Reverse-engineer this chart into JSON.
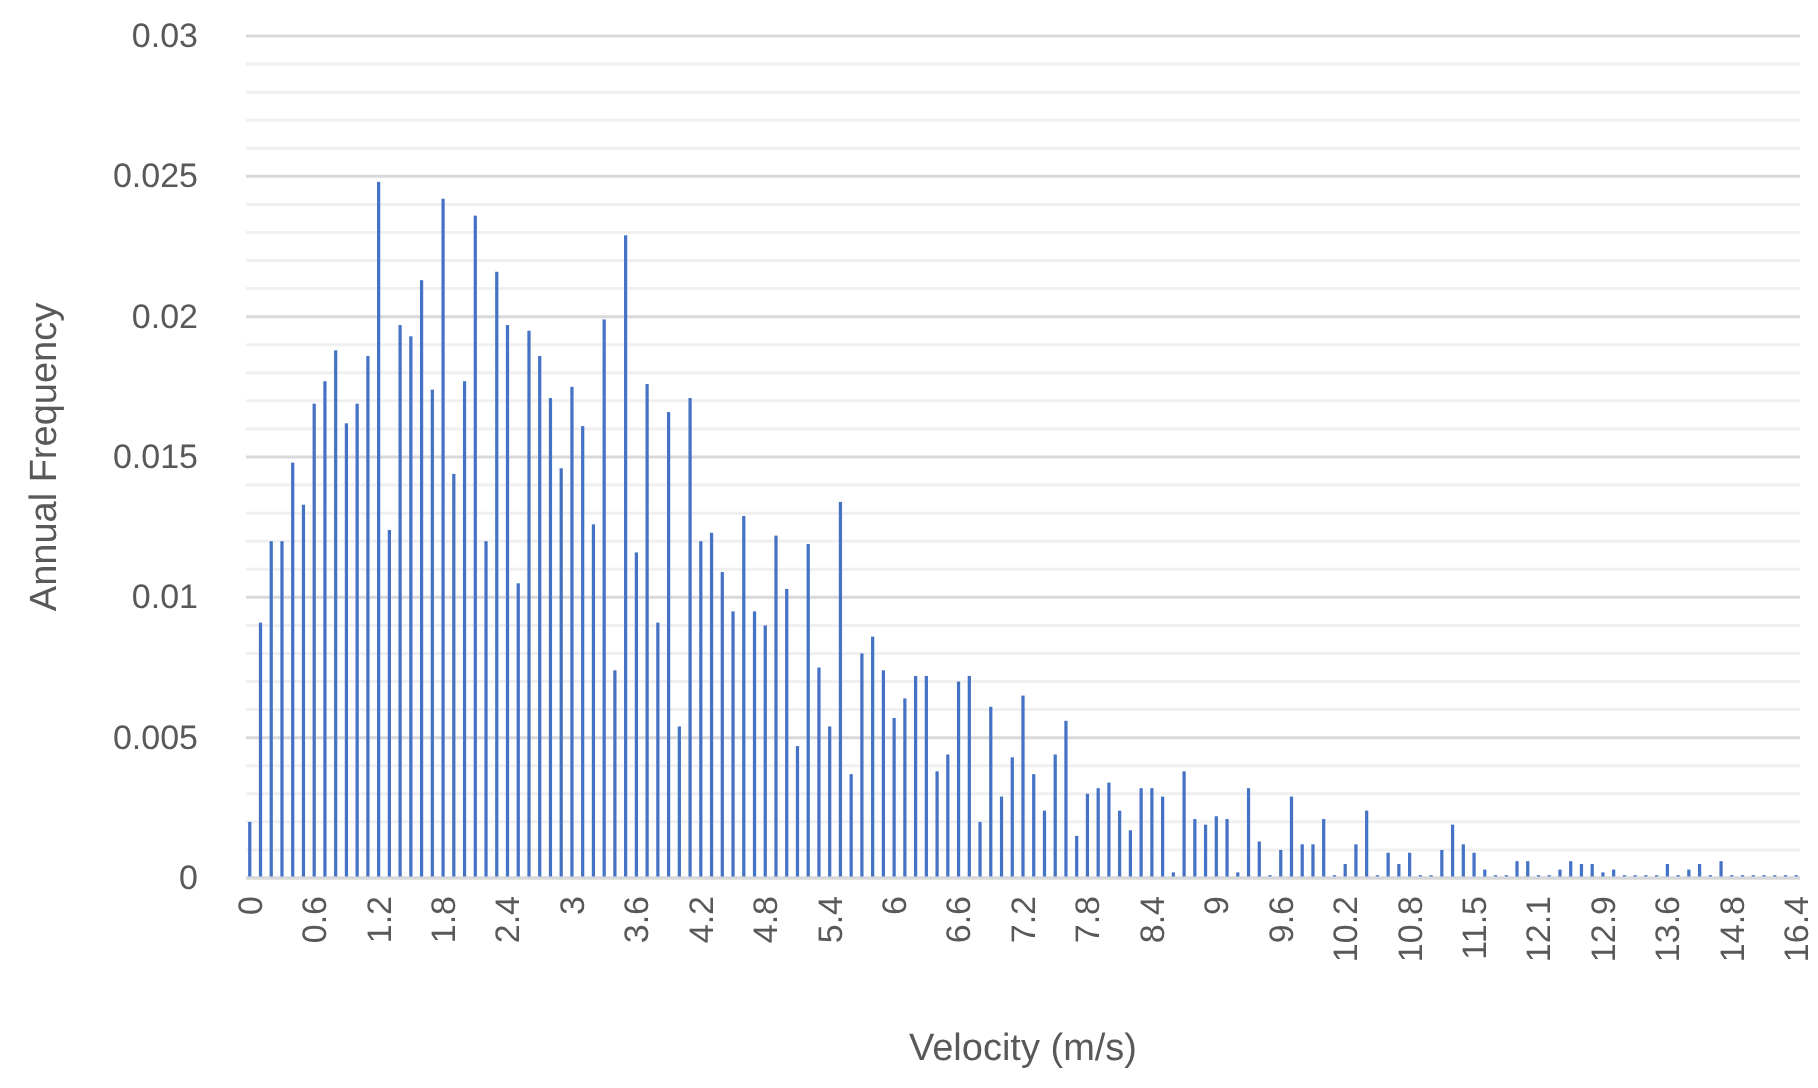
{
  "chart_data": {
    "type": "bar",
    "xlabel": "Velocity (m/s)",
    "ylabel": "Annual Frequency",
    "categories": [
      "0",
      null,
      null,
      null,
      null,
      null,
      "0.6",
      null,
      null,
      null,
      null,
      null,
      "1.2",
      null,
      null,
      null,
      null,
      null,
      "1.8",
      null,
      null,
      null,
      null,
      null,
      "2.4",
      null,
      null,
      null,
      null,
      null,
      "3",
      null,
      null,
      null,
      null,
      null,
      "3.6",
      null,
      null,
      null,
      null,
      null,
      "4.2",
      null,
      null,
      null,
      null,
      null,
      "4.8",
      null,
      null,
      null,
      null,
      null,
      "5.4",
      null,
      null,
      null,
      null,
      null,
      "6",
      null,
      null,
      null,
      null,
      null,
      "6.6",
      null,
      null,
      null,
      null,
      null,
      "7.2",
      null,
      null,
      null,
      null,
      null,
      "7.8",
      null,
      null,
      null,
      null,
      null,
      "8.4",
      null,
      null,
      null,
      null,
      null,
      "9",
      null,
      null,
      null,
      null,
      null,
      "9.6",
      null,
      null,
      null,
      null,
      null,
      "10.2",
      null,
      null,
      null,
      null,
      null,
      "10.8",
      null,
      null,
      null,
      null,
      null,
      "11.5",
      null,
      null,
      null,
      null,
      null,
      "12.1",
      null,
      null,
      null,
      null,
      null,
      "12.9",
      null,
      null,
      null,
      null,
      null,
      "13.6",
      null,
      null,
      null,
      null,
      null,
      "14.8",
      null,
      null,
      null,
      null,
      null,
      "16.4"
    ],
    "series": [
      {
        "color": "#4472c4",
        "values": [
          0.002,
          0.0091,
          0.012,
          0.012,
          0.0148,
          0.0133,
          0.0169,
          0.0177,
          0.0188,
          0.0162,
          0.0169,
          0.0186,
          0.0248,
          0.0124,
          0.0197,
          0.0193,
          0.0213,
          0.0174,
          0.0242,
          0.0144,
          0.0177,
          0.0236,
          0.012,
          0.0216,
          0.0197,
          0.0105,
          0.0195,
          0.0186,
          0.0171,
          0.0146,
          0.0175,
          0.0161,
          0.0126,
          0.0199,
          0.0074,
          0.0229,
          0.0116,
          0.0176,
          0.0091,
          0.0166,
          0.0054,
          0.0171,
          0.012,
          0.0123,
          0.0109,
          0.0095,
          0.0129,
          0.0095,
          0.009,
          0.0122,
          0.0103,
          0.0047,
          0.0119,
          0.0075,
          0.0054,
          0.0134,
          0.0037,
          0.008,
          0.0086,
          0.0074,
          0.0057,
          0.0064,
          0.0072,
          0.0072,
          0.0038,
          0.0044,
          0.007,
          0.0072,
          0.002,
          0.0061,
          0.0029,
          0.0043,
          0.0065,
          0.0037,
          0.0024,
          0.0044,
          0.0056,
          0.0015,
          0.003,
          0.0032,
          0.0034,
          0.0024,
          0.0017,
          0.0032,
          0.0032,
          0.0029,
          0.0002,
          0.0038,
          0.0021,
          0.0019,
          0.0022,
          0.0021,
          0.0002,
          0.0032,
          0.0013,
          0.0001,
          0.001,
          0.0029,
          0.0012,
          0.0012,
          0.0021,
          0.0001,
          0.0005,
          0.0012,
          0.0024,
          0.0001,
          0.0009,
          0.0005,
          0.0009,
          0.0001,
          0.0001,
          0.001,
          0.0019,
          0.0012,
          0.0009,
          0.0003,
          0.0001,
          0.0001,
          0.0006,
          0.0006,
          0.0001,
          0.0001,
          0.0003,
          0.0006,
          0.0005,
          0.0005,
          0.0002,
          0.0003,
          0.0001,
          0.0001,
          0.0001,
          0.0001,
          0.0005,
          0.0001,
          0.0003,
          0.0005,
          0.0001,
          0.0006,
          0.0001,
          0.0001,
          0.0001,
          0.0001,
          0.0001,
          0.0001,
          0.0001
        ]
      }
    ],
    "ylim": [
      0,
      0.03
    ],
    "yticks": [
      0,
      {
        "value": 0.001,
        "label": null
      },
      {
        "value": 0.002,
        "label": null
      },
      {
        "value": 0.003,
        "label": null
      },
      {
        "value": 0.004,
        "label": null
      },
      0.005,
      {
        "value": 0.006,
        "label": null
      },
      {
        "value": 0.007,
        "label": null
      },
      {
        "value": 0.008,
        "label": null
      },
      {
        "value": 0.009,
        "label": null
      },
      0.01,
      {
        "value": 0.011,
        "label": null
      },
      {
        "value": 0.012,
        "label": null
      },
      {
        "value": 0.013,
        "label": null
      },
      {
        "value": 0.014,
        "label": null
      },
      0.015,
      {
        "value": 0.016,
        "label": null
      },
      {
        "value": 0.017,
        "label": null
      },
      {
        "value": 0.018,
        "label": null
      },
      {
        "value": 0.019,
        "label": null
      },
      0.02,
      {
        "value": 0.021,
        "label": null
      },
      {
        "value": 0.022,
        "label": null
      },
      {
        "value": 0.023,
        "label": null
      },
      {
        "value": 0.024,
        "label": null
      },
      0.025,
      {
        "value": 0.026,
        "label": null
      },
      {
        "value": 0.027,
        "label": null
      },
      {
        "value": 0.028,
        "label": null
      },
      {
        "value": 0.029,
        "label": null
      },
      0.03
    ],
    "grid": "y"
  }
}
